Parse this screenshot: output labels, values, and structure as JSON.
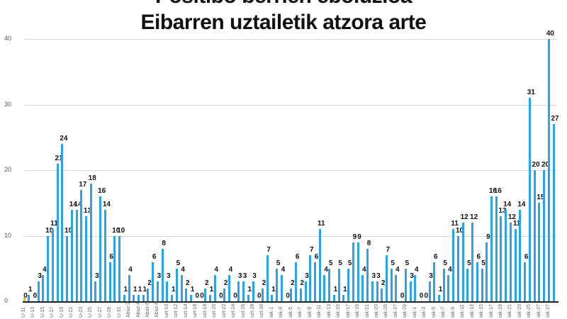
{
  "header": {
    "title_line1": "Positibo berrien eboluzioa",
    "title_line2": "Eibarren uztailetik atzora arte"
  },
  "colors": {
    "bar": "#2aa3e8",
    "first_bar": "#e8c400",
    "grid": "#d8d8d8",
    "axis": "#222222"
  },
  "chart_data": {
    "type": "bar",
    "title": "Positibo berrien eboluzioa — Eibarren uztailetik atzora arte",
    "xlabel": "",
    "ylabel": "",
    "ylim": [
      0,
      40
    ],
    "yticks": [
      0,
      10,
      20,
      30,
      40
    ],
    "grid": true,
    "legend": null,
    "x_tick_labels_every_other_bar": [
      "U-11",
      "U-13",
      "U-15",
      "U-17",
      "U-19",
      "U-21",
      "U-23",
      "U-25",
      "U-27",
      "U-29",
      "U-31",
      "Abuz-2",
      "Abuz-4",
      "Abuz-6",
      "Abuz-8",
      "uzt-10",
      "uzt-12",
      "uzt-14",
      "uzt-16",
      "uzt-18",
      "uzt-20",
      "uzt-22",
      "uzt-24",
      "uzt-26",
      "uzt-28",
      "uzt-30",
      "iak-1",
      "iak-3",
      "iak-5",
      "iak-7",
      "iak-9",
      "iak-11",
      "iak-13",
      "iak-15",
      "iak-17",
      "iak-19",
      "iak-21",
      "iak-23",
      "iak-25",
      "iak-27",
      "iak-29",
      "iak-1",
      "iak-3",
      "iak-5",
      "iak-7",
      "iak-9",
      "iak-11",
      "iak-13",
      "iak-15",
      "iak-17",
      "iak-19",
      "iak-21",
      "iak-23",
      "iak-25",
      "iak-27",
      "iak-27"
    ],
    "values": [
      0,
      1,
      0,
      3,
      4,
      10,
      11,
      21,
      24,
      10,
      14,
      14,
      17,
      13,
      18,
      3,
      16,
      14,
      6,
      10,
      10,
      1,
      4,
      1,
      1,
      1,
      2,
      6,
      3,
      8,
      3,
      1,
      5,
      4,
      2,
      1,
      0,
      0,
      2,
      1,
      4,
      0,
      2,
      4,
      0,
      3,
      3,
      1,
      3,
      0,
      2,
      7,
      1,
      5,
      4,
      0,
      2,
      6,
      2,
      3,
      7,
      6,
      11,
      4,
      5,
      1,
      5,
      1,
      5,
      9,
      9,
      4,
      8,
      3,
      3,
      2,
      7,
      5,
      4,
      0,
      5,
      3,
      4,
      0,
      0,
      3,
      6,
      1,
      5,
      4,
      11,
      10,
      12,
      5,
      12,
      6,
      5,
      9,
      16,
      16,
      13,
      14,
      12,
      11,
      14,
      6,
      31,
      20,
      15,
      20,
      40,
      27
    ]
  }
}
